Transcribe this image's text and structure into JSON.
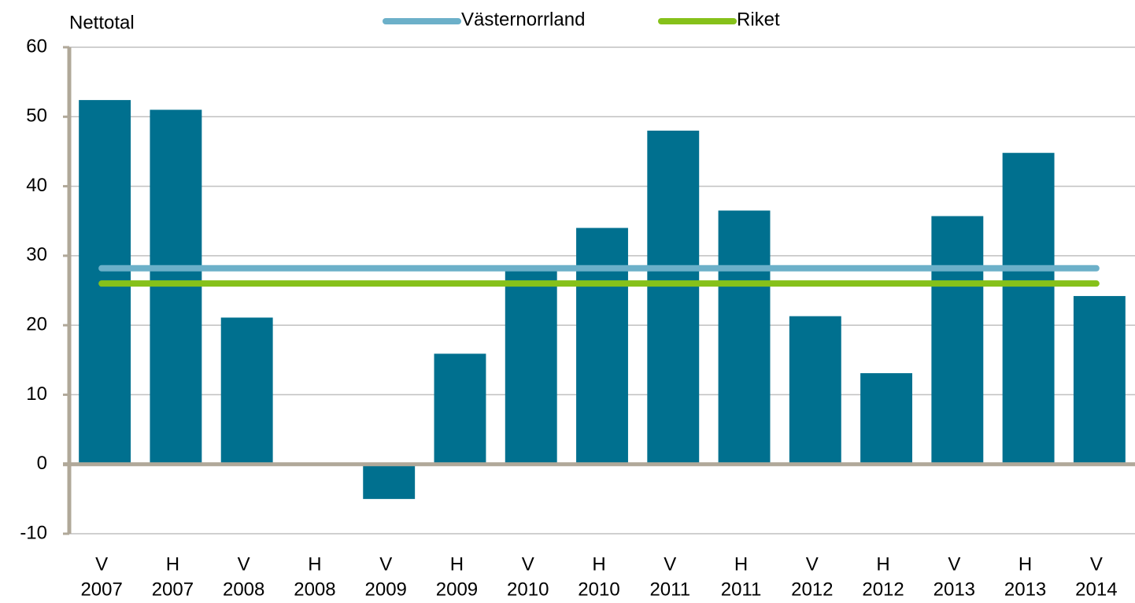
{
  "chart_data": {
    "type": "bar",
    "y_label": "Nettotal",
    "categories": [
      [
        "V",
        "2007"
      ],
      [
        "H",
        "2007"
      ],
      [
        "V",
        "2008"
      ],
      [
        "H",
        "2008"
      ],
      [
        "V",
        "2009"
      ],
      [
        "H",
        "2009"
      ],
      [
        "V",
        "2010"
      ],
      [
        "H",
        "2010"
      ],
      [
        "V",
        "2011"
      ],
      [
        "H",
        "2011"
      ],
      [
        "V",
        "2012"
      ],
      [
        "H",
        "2012"
      ],
      [
        "V",
        "2013"
      ],
      [
        "H",
        "2013"
      ],
      [
        "V",
        "2014"
      ]
    ],
    "values": [
      52.4,
      51.0,
      21.1,
      0,
      -5.0,
      15.9,
      28.3,
      34.0,
      48.0,
      36.5,
      21.3,
      13.1,
      35.7,
      44.8,
      24.2
    ],
    "color": "#00708f",
    "series": [
      {
        "name": "Västernorrland",
        "type": "line",
        "color": "#6cb0c9",
        "values": [
          28.2,
          28.2,
          28.2,
          28.2,
          28.2,
          28.2,
          28.2,
          28.2,
          28.2,
          28.2,
          28.2,
          28.2,
          28.2,
          28.2,
          28.2
        ]
      },
      {
        "name": "Riket",
        "type": "line",
        "color": "#86c11a",
        "values": [
          26.0,
          26.0,
          26.0,
          26.0,
          26.0,
          26.0,
          26.0,
          26.0,
          26.0,
          26.0,
          26.0,
          26.0,
          26.0,
          26.0,
          26.0
        ]
      }
    ],
    "ylim": [
      -10,
      60
    ],
    "yticks": [
      -10,
      0,
      10,
      20,
      30,
      40,
      50,
      60
    ],
    "grid": true,
    "legend": "top"
  }
}
